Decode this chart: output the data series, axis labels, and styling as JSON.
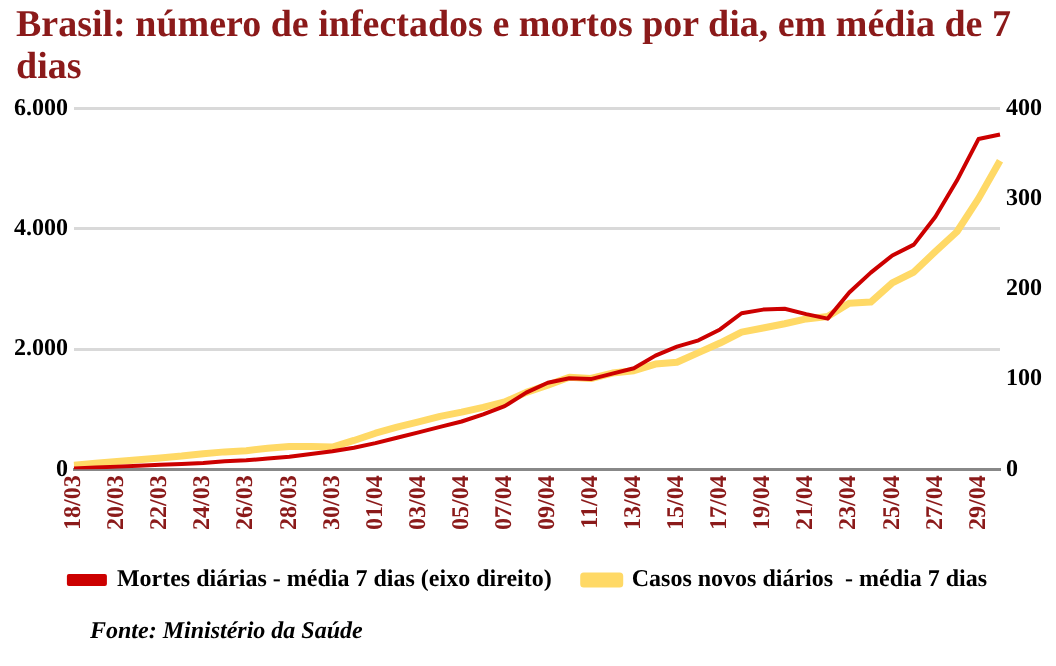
{
  "chart_data": {
    "type": "line",
    "title": "Brasil: número de infectados e mortos por dia, em média de 7 dias",
    "categories": [
      "18/03",
      null,
      "20/03",
      null,
      "22/03",
      null,
      "24/03",
      null,
      "26/03",
      null,
      "28/03",
      null,
      "30/03",
      null,
      "01/04",
      null,
      "03/04",
      null,
      "05/04",
      null,
      "07/04",
      null,
      "09/04",
      null,
      "11/04",
      null,
      "13/04",
      null,
      "15/04",
      null,
      "17/04",
      null,
      "19/04",
      null,
      "21/04",
      null,
      "23/04",
      null,
      "25/04",
      null,
      "27/04",
      null,
      "29/04",
      null
    ],
    "series": [
      {
        "name": "Casos novos diários  - média 7 dias",
        "color": "#ffd966",
        "values": [
          70,
          100,
          130,
          160,
          190,
          220,
          260,
          290,
          310,
          350,
          380,
          380,
          370,
          480,
          600,
          700,
          790,
          880,
          950,
          1030,
          1120,
          1280,
          1400,
          1530,
          1510,
          1600,
          1640,
          1750,
          1780,
          1940,
          2100,
          2280,
          2350,
          2420,
          2500,
          2540,
          2760,
          2780,
          3100,
          3280,
          3620,
          3950,
          4500,
          5130
        ]
      },
      {
        "name": "Mortes diárias - média 7 dias (eixo direito)",
        "color": "#cc0000",
        "axis": "y2",
        "values": [
          1,
          2,
          3,
          4,
          5,
          6,
          7,
          9,
          10,
          12,
          14,
          17,
          20,
          24,
          29,
          35,
          41,
          47,
          53,
          61,
          70,
          85,
          96,
          101,
          100,
          106,
          112,
          126,
          136,
          143,
          155,
          173,
          177,
          178,
          172,
          167,
          196,
          218,
          237,
          249,
          280,
          320,
          366,
          371
        ]
      }
    ],
    "ylim": [
      0,
      6000
    ],
    "yticks": [
      {
        "value": 0,
        "label": "0"
      },
      {
        "value": 2000,
        "label": "2.000"
      },
      {
        "value": 4000,
        "label": "4.000"
      },
      {
        "value": 6000,
        "label": "6.000"
      }
    ],
    "y2lim": [
      0,
      400
    ],
    "y2ticks": [
      0,
      100,
      200,
      300,
      400
    ],
    "grid": "y",
    "legend": "bottom",
    "marker": "none",
    "line_style": "solid",
    "annotations": [
      "Fonte: Ministério da Saúde"
    ]
  }
}
